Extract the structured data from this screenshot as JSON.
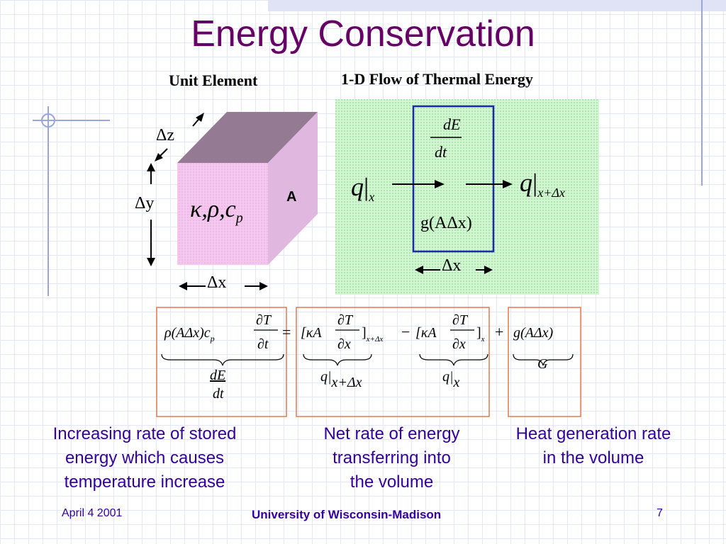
{
  "slide": {
    "title": "Energy Conservation",
    "left_heading": "Unit Element",
    "right_heading": "1-D Flow of Thermal Energy",
    "cube": {
      "properties": "κ,ρ,c",
      "properties_sub": "p",
      "face_label": "A",
      "dz": "Δz",
      "dy": "Δy",
      "dx": "Δx"
    },
    "flow": {
      "dE": "dE",
      "dt": "dt",
      "q": "q",
      "q_in_sub": "x",
      "q_out_sub": "x+Δx",
      "generation": "g(AΔx)",
      "dx": "Δx"
    },
    "equation": {
      "lhs": "ρ(AΔx)c",
      "lhs_sub": "p",
      "partialT": "∂T",
      "partialt": "∂t",
      "equals": "=",
      "term1": "[κA",
      "partialx": "∂x",
      "term1_close": "]",
      "term1_sub": "x+Δx",
      "minus": "−",
      "term2": "[κA",
      "term2_close": "]",
      "term2_sub": "x",
      "plus": "+",
      "gen": "g(AΔx)",
      "brace_dE": "dE",
      "brace_dt": "dt",
      "brace_q1": "q|",
      "brace_q1_sub": "x+Δx",
      "brace_q2": "q|",
      "brace_q2_sub": "x",
      "brace_G": "G"
    },
    "captions": {
      "left": [
        "Increasing rate of stored",
        "energy which causes",
        "temperature increase"
      ],
      "middle": [
        "Net rate of energy",
        "transferring into",
        "the volume"
      ],
      "right": [
        "Heat generation rate",
        "in the volume"
      ]
    },
    "footer": {
      "date": "April 4 2001",
      "university": "University of Wisconsin-Madison",
      "page": "7"
    }
  }
}
